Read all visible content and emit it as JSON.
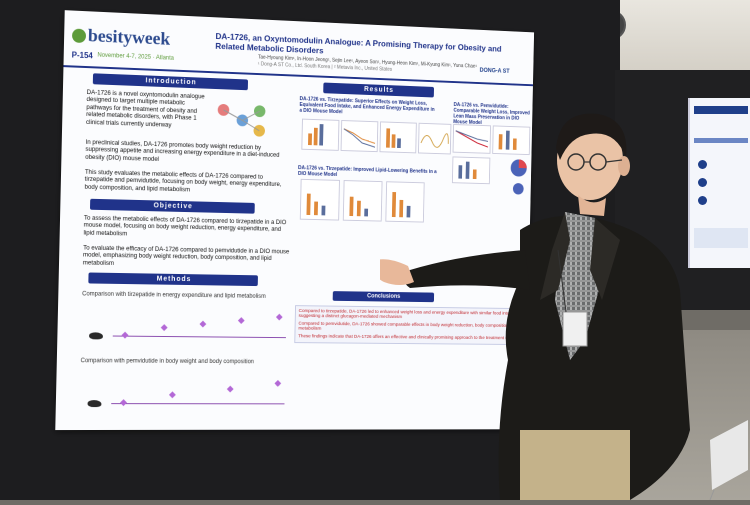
{
  "poster": {
    "brand": "besityweek",
    "conference_dates": "November 4-7, 2025",
    "conference_city": "Atlanta",
    "poster_number": "P-154",
    "title": "DA-1726, an Oxyntomodulin Analogue: A Promising Therapy for Obesity and Related Metabolic Disorders",
    "authors": "Tae-Hyoung Kim¹, In-Hoon Jeong¹, Sejin Lee¹, Ayeon Son¹, Hyung-Heon Kim¹, Mi-Kyung Kim¹, Yuna Chae¹",
    "affiliation": "¹ Dong-A ST Co., Ltd. South Korea | ² Metavia Inc., United States",
    "sponsor": "DONG-A ST",
    "sections": {
      "introduction": "Introduction",
      "objective": "Objective",
      "methods": "Methods",
      "results": "Results",
      "conclusions": "Conclusions"
    },
    "intro_text": "DA-1726 is a novel oxyntomodulin analogue designed to target multiple metabolic pathways for the treatment of obesity and related metabolic disorders, with Phase 1 clinical trials currently underway",
    "intro_text_2": "In preclinical studies, DA-1726 promotes body weight reduction by suppressing appetite and increasing energy expenditure in a diet-induced obesity (DIO) mouse model",
    "intro_text_3": "This study evaluates the metabolic effects of DA-1726 compared to tirzepatide and pemvidutide, focusing on body weight, energy expenditure, body composition, and lipid metabolism",
    "objective_1": "To assess the metabolic effects of DA-1726 compared to tirzepatide in a DIO mouse model, focusing on body weight reduction, energy expenditure, and lipid metabolism",
    "objective_2": "To evaluate the efficacy of DA-1726 compared to pemvidutide in a DIO mouse model, emphasizing body weight reduction, body composition, and lipid metabolism",
    "methods_1": "Comparison with tirzepatide in energy expenditure and lipid metabolism",
    "methods_2": "Comparison with pemvidutide in body weight and body composition",
    "results_head_1": "DA-1726 vs. Tirzepatide: Superior Effects on Weight Loss, Equivalent Food Intake, and Enhanced Energy Expenditure in a DIO Mouse Model",
    "results_head_2": "DA-1726 vs. Tirzepatide: Improved Lipid-Lowering Benefits in a DIO Mouse Model",
    "results_head_3": "DA-1726 vs. Pemvidutide: Comparable Weight Loss, Improved Lean Mass Preservation in DIO Mouse Model",
    "conclusion_1": "Compared to tirzepatide, DA-1726 led to enhanced weight loss and energy expenditure with similar food intake, suggesting a distinct glucagon-mediated mechanism",
    "conclusion_2": "Compared to pemvidutide, DA-1726 showed comparable effects in body weight reduction, body composition, and lipid metabolism",
    "conclusion_3": "These findings indicate that DA-1726 offers an effective and clinically promising approach to the treatment of obesity"
  },
  "colors": {
    "header_blue": "#20338a",
    "chart_orange": "#e08a3a",
    "chart_blue": "#5a6e9c",
    "timeline_purple": "#b368d6",
    "conclusion_red": "#c0272d"
  }
}
